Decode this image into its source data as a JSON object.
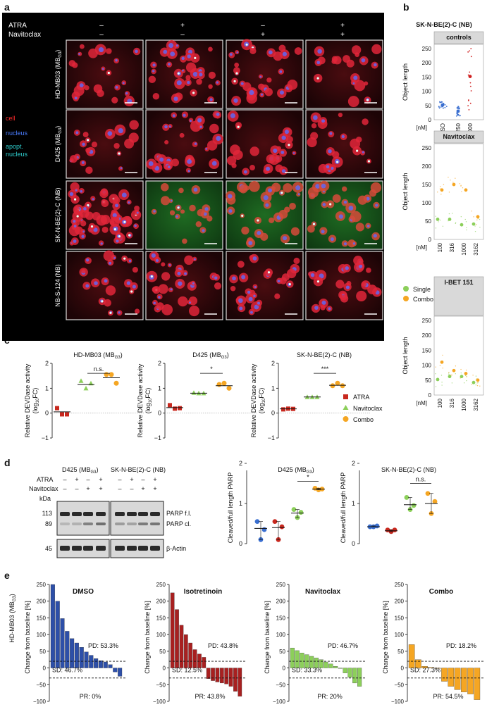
{
  "panels": {
    "a": "a",
    "b": "b",
    "c": "c",
    "d": "d",
    "e": "e"
  },
  "panel_a": {
    "row_labels_top": [
      "ATRA",
      "Navitoclax"
    ],
    "atra_signs": [
      "–",
      "+",
      "–",
      "+"
    ],
    "navitoclax_signs": [
      "–",
      "–",
      "+",
      "+"
    ],
    "cell_lines": [
      "HD-MB03 (MB",
      "D425 (MB",
      "SK-N-BE(2)-C (NB)",
      "NB-S-124 (NB)"
    ],
    "cell_line_subscripts": [
      "G3",
      "G3",
      "",
      ""
    ],
    "legend": [
      {
        "label": "cell",
        "color": "#ff2a2a"
      },
      {
        "label": "nucleus",
        "color": "#4a7dff"
      },
      {
        "label": "apopt.",
        "color": "#2ecfcf"
      },
      {
        "label": "nucleus",
        "color": "#2ecfcf"
      }
    ]
  },
  "panel_b": {
    "title": "SK-N-BE(2)-C (NB)",
    "ylabel": "Object length",
    "sub_titles": [
      "controls",
      "Navitoclax",
      "I-BET 151"
    ],
    "y_ticks": [
      "0",
      "50",
      "100",
      "150",
      "200",
      "250"
    ],
    "controls_x_labels": [
      "DMSO",
      "250",
      "1000"
    ],
    "controls_x_sublabels": [
      "STS",
      "ATRA"
    ],
    "dose_labels": [
      "100",
      "316",
      "1000",
      "3162"
    ],
    "nm_label": "[nM]",
    "legend": [
      {
        "label": "Single",
        "color": "#8ccf5a"
      },
      {
        "label": "Combo",
        "color": "#f5a623"
      }
    ]
  },
  "panel_c": {
    "ylabel_line1": "Relative DEVDase activity",
    "ylabel_line2": "(log",
    "ylabel_sub": "10",
    "ylabel_tail": "FC)",
    "y_ticks": [
      "−1",
      "0",
      "1",
      "2"
    ],
    "charts": [
      {
        "title": "HD-MB03 (MB",
        "title_sub": "G3",
        "sig": "n.s."
      },
      {
        "title": "D425 (MB",
        "title_sub": "G3",
        "sig": "*"
      },
      {
        "title": "SK-N-BE(2)-C (NB)",
        "title_sub": "",
        "sig": "***"
      }
    ],
    "legend": [
      {
        "label": "ATRA",
        "color": "#c8281e",
        "shape": "square"
      },
      {
        "label": "Navitoclax",
        "color": "#8ccf5a",
        "shape": "triangle"
      },
      {
        "label": "Combo",
        "color": "#f5a623",
        "shape": "circle"
      }
    ]
  },
  "panel_d": {
    "blot_titles": [
      "D425 (MB",
      "SK-N-BE(2)-C (NB)"
    ],
    "blot_title_sub": "G3",
    "row_labels": [
      "ATRA",
      "Navitoclax",
      "kDa"
    ],
    "atra_signs": [
      "–",
      "+",
      "–",
      "+",
      "–",
      "+",
      "–",
      "+"
    ],
    "navitoclax_signs": [
      "–",
      "–",
      "+",
      "+",
      "–",
      "–",
      "+",
      "+"
    ],
    "kda": [
      "113",
      "89",
      "45"
    ],
    "band_labels": [
      "PARP f.l.",
      "PARP cl.",
      "β-Actin"
    ],
    "ylabel": "Cleaved/full length PARP",
    "y_ticks": [
      "0",
      "1",
      "2"
    ],
    "charts": [
      {
        "title": "D425 (MB",
        "title_sub": "G3",
        "sig": "*"
      },
      {
        "title": "SK-N-BE(2)-C (NB)",
        "title_sub": "",
        "sig": "n.s."
      }
    ]
  },
  "panel_e": {
    "row_label": "HD-MB03 (MB",
    "row_label_sub": "G3",
    "ylabel": "Change from baseline [%]",
    "y_ticks": [
      "−100",
      "−50",
      "0",
      "50",
      "100",
      "150",
      "200",
      "250"
    ],
    "charts": [
      {
        "title": "DMSO",
        "pd": "PD: 53.3%",
        "sd": "SD: 46.7%",
        "pr": "PR: 0%",
        "color": "#2d4fa8"
      },
      {
        "title": "Isotretinoin",
        "pd": "PD: 43.8%",
        "sd": "SD: 12.5%",
        "pr": "PR: 43.8%",
        "color": "#a82020"
      },
      {
        "title": "Navitoclax",
        "pd": "PD: 46.7%",
        "sd": "SD: 33.3%",
        "pr": "PR: 20%",
        "color": "#8ccf5a"
      },
      {
        "title": "Combo",
        "pd": "PD: 18.2%",
        "sd": "SD: 27.3%",
        "pr": "PR: 54.5%",
        "color": "#f5a623"
      }
    ]
  },
  "chart_data": [
    {
      "type": "scatter",
      "title": "controls",
      "ylabel": "Object length",
      "ylim": [
        0,
        250
      ],
      "categories": [
        "DMSO",
        "250 STS",
        "1000 ATRA"
      ],
      "means": [
        52,
        30,
        152
      ]
    },
    {
      "type": "scatter",
      "title": "Navitoclax",
      "ylabel": "Object length",
      "ylim": [
        0,
        250
      ],
      "x": [
        "100",
        "316",
        "1000",
        "3162"
      ],
      "series": [
        {
          "name": "Single",
          "values": [
            55,
            55,
            40,
            42
          ]
        },
        {
          "name": "Combo",
          "values": [
            135,
            150,
            135,
            62
          ]
        }
      ]
    },
    {
      "type": "scatter",
      "title": "I-BET 151",
      "ylabel": "Object length",
      "ylim": [
        0,
        250
      ],
      "x": [
        "100",
        "316",
        "1000",
        "3162"
      ],
      "series": [
        {
          "name": "Single",
          "values": [
            52,
            62,
            62,
            42
          ]
        },
        {
          "name": "Combo",
          "values": [
            110,
            82,
            72,
            50
          ]
        }
      ]
    },
    {
      "type": "scatter",
      "title": "HD-MB03 (MBG3)",
      "ylabel": "Relative DEVDase activity (log10FC)",
      "ylim": [
        -1,
        2
      ],
      "categories": [
        "ATRA",
        "Navitoclax",
        "Combo"
      ],
      "series": [
        {
          "name": "ATRA",
          "values": [
            0.2,
            -0.05,
            -0.05
          ],
          "mean": 0.05
        },
        {
          "name": "Navitoclax",
          "values": [
            1.3,
            1.0,
            1.2
          ],
          "mean": 1.15
        },
        {
          "name": "Combo",
          "values": [
            1.55,
            1.55,
            1.2
          ],
          "mean": 1.42
        }
      ]
    },
    {
      "type": "scatter",
      "title": "D425 (MBG3)",
      "ylabel": "Relative DEVDase activity (log10FC)",
      "ylim": [
        -1,
        2
      ],
      "categories": [
        "ATRA",
        "Navitoclax",
        "Combo"
      ],
      "series": [
        {
          "name": "ATRA",
          "values": [
            0.32,
            0.18,
            0.2
          ],
          "mean": 0.22
        },
        {
          "name": "Navitoclax",
          "values": [
            0.82,
            0.8,
            0.8
          ],
          "mean": 0.8
        },
        {
          "name": "Combo",
          "values": [
            1.15,
            1.2,
            1.0
          ],
          "mean": 1.1
        }
      ]
    },
    {
      "type": "scatter",
      "title": "SK-N-BE(2)-C (NB)",
      "ylabel": "Relative DEVDase activity (log10FC)",
      "ylim": [
        -1,
        2
      ],
      "categories": [
        "ATRA",
        "Navitoclax",
        "Combo"
      ],
      "series": [
        {
          "name": "ATRA",
          "values": [
            0.15,
            0.18,
            0.17
          ],
          "mean": 0.17
        },
        {
          "name": "Navitoclax",
          "values": [
            0.65,
            0.65,
            0.65
          ],
          "mean": 0.65
        },
        {
          "name": "Combo",
          "values": [
            1.1,
            1.2,
            1.1
          ],
          "mean": 1.12
        }
      ]
    },
    {
      "type": "scatter",
      "title": "D425 (MBG3)",
      "ylabel": "Cleaved/full length PARP",
      "ylim": [
        0,
        2
      ],
      "categories": [
        "DMSO",
        "ATRA",
        "Navitoclax",
        "Combo"
      ],
      "series": [
        {
          "name": "DMSO",
          "values": [
            0.55,
            0.1,
            0.35
          ],
          "mean": 0.38
        },
        {
          "name": "ATRA",
          "values": [
            0.55,
            0.1,
            0.42
          ],
          "mean": 0.4
        },
        {
          "name": "Navitoclax",
          "values": [
            0.85,
            0.65,
            0.78
          ],
          "mean": 0.76
        },
        {
          "name": "Combo",
          "values": [
            1.38,
            1.34,
            1.36
          ],
          "mean": 1.36
        }
      ]
    },
    {
      "type": "scatter",
      "title": "SK-N-BE(2)-C (NB)",
      "ylabel": "Cleaved/full length PARP",
      "ylim": [
        0,
        2
      ],
      "categories": [
        "DMSO",
        "ATRA",
        "Navitoclax",
        "Combo"
      ],
      "series": [
        {
          "name": "DMSO",
          "values": [
            0.42,
            0.42,
            0.44
          ],
          "mean": 0.42
        },
        {
          "name": "ATRA",
          "values": [
            0.34,
            0.3,
            0.34
          ],
          "mean": 0.32
        },
        {
          "name": "Navitoclax",
          "values": [
            1.15,
            0.85,
            0.95
          ],
          "mean": 0.97
        },
        {
          "name": "Combo",
          "values": [
            1.25,
            0.75,
            1.05
          ],
          "mean": 1.0
        }
      ]
    },
    {
      "type": "bar",
      "title": "DMSO",
      "ylabel": "Change from baseline [%]",
      "ylim": [
        -100,
        250
      ],
      "values": [
        250,
        200,
        148,
        110,
        88,
        75,
        62,
        48,
        38,
        28,
        22,
        18,
        10,
        -12,
        -25
      ]
    },
    {
      "type": "bar",
      "title": "Isotretinoin",
      "ylabel": "Change from baseline [%]",
      "ylim": [
        -100,
        250
      ],
      "values": [
        225,
        175,
        128,
        100,
        75,
        55,
        42,
        32,
        -32,
        -38,
        -42,
        -45,
        -48,
        -55,
        -70,
        -85
      ]
    },
    {
      "type": "bar",
      "title": "Navitoclax",
      "ylabel": "Change from baseline [%]",
      "ylim": [
        -100,
        250
      ],
      "values": [
        60,
        52,
        45,
        40,
        35,
        30,
        25,
        18,
        12,
        5,
        0,
        -15,
        -28,
        -45,
        -55
      ]
    },
    {
      "type": "bar",
      "title": "Combo",
      "ylabel": "Change from baseline [%]",
      "ylim": [
        -100,
        250
      ],
      "values": [
        70,
        25,
        5,
        2,
        0,
        -40,
        -55,
        -65,
        -72,
        -78,
        -95
      ]
    }
  ]
}
